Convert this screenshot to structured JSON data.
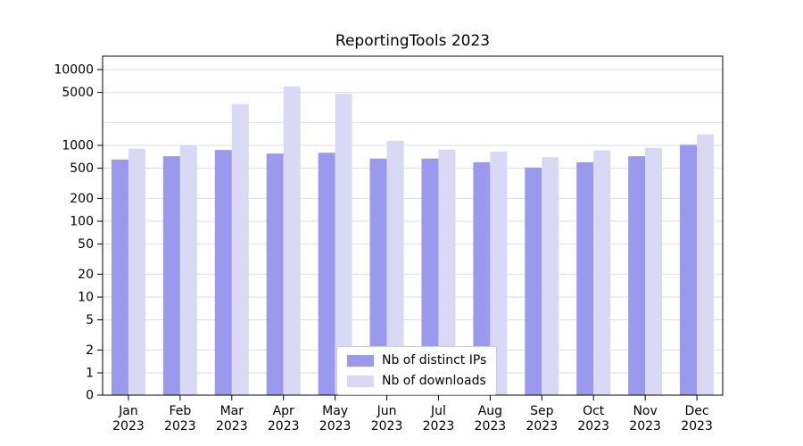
{
  "chart_data": {
    "type": "bar",
    "title": "ReportingTools 2023",
    "categories": [
      "Jan",
      "Feb",
      "Mar",
      "Apr",
      "May",
      "Jun",
      "Jul",
      "Aug",
      "Sep",
      "Oct",
      "Nov",
      "Dec"
    ],
    "year_label": "2023",
    "series": [
      {
        "name": "Nb of distinct IPs",
        "color": "#9999ed",
        "values": [
          650,
          720,
          870,
          780,
          800,
          670,
          670,
          600,
          510,
          600,
          720,
          1020
        ]
      },
      {
        "name": "Nb of downloads",
        "color": "#d9d9f6",
        "values": [
          900,
          1000,
          3500,
          6000,
          4800,
          1150,
          880,
          830,
          700,
          860,
          930,
          1400
        ]
      }
    ],
    "yscale": "symlog",
    "ylim": [
      0,
      10000
    ],
    "yticks": [
      0,
      1,
      2,
      5,
      10,
      20,
      50,
      100,
      200,
      500,
      1000,
      5000,
      10000
    ],
    "ygrid_extra": [
      2000
    ],
    "grid": true,
    "legend_position": "lower center",
    "colors": {
      "grid": "#dedede",
      "axis": "#000000",
      "background": "#ffffff",
      "text": "#000000"
    }
  }
}
